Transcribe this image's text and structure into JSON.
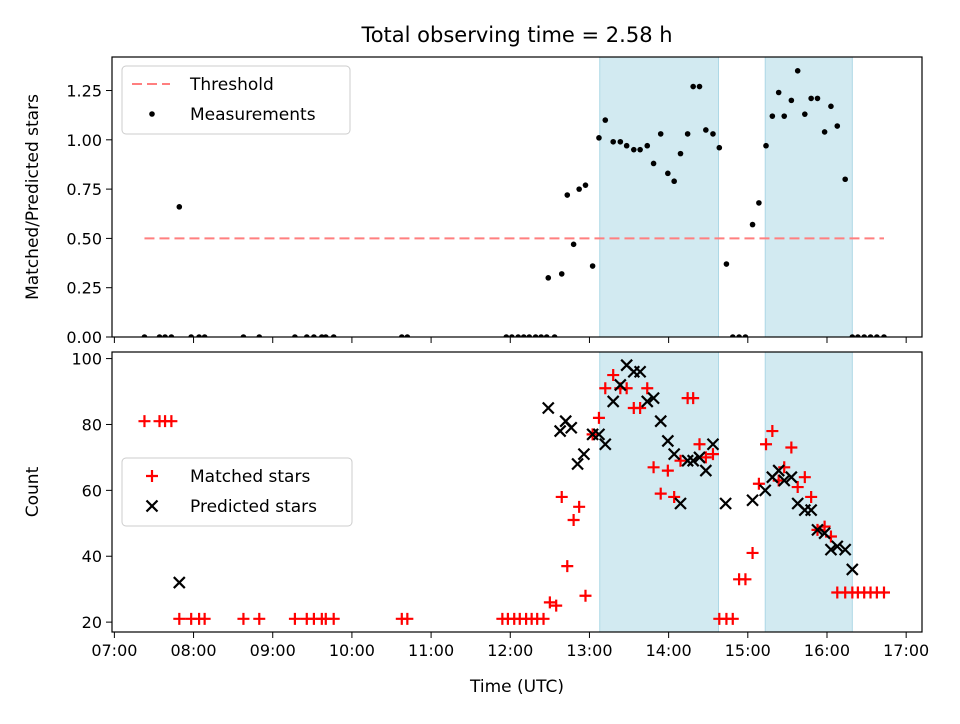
{
  "title": "Total observing time = 2.58 h",
  "xlabel": "Time (UTC)",
  "x_ticks": [
    "07:00",
    "08:00",
    "09:00",
    "10:00",
    "11:00",
    "12:00",
    "13:00",
    "14:00",
    "15:00",
    "16:00",
    "17:00"
  ],
  "x_tick_hours": [
    7,
    8,
    9,
    10,
    11,
    12,
    13,
    14,
    15,
    16,
    17
  ],
  "x_range": [
    6.97,
    17.2
  ],
  "shaded_intervals": [
    [
      13.13,
      14.63
    ],
    [
      15.22,
      16.32
    ]
  ],
  "colors": {
    "shade": "#add8e6",
    "threshold": "#ff7f7f",
    "matched": "#ff0000",
    "predicted": "#000000",
    "measurement": "#000000"
  },
  "chart_data": [
    {
      "type": "scatter",
      "ylabel": "Matched/Predicted stars",
      "ylim": [
        0,
        1.42
      ],
      "y_ticks": [
        "0.00",
        "0.25",
        "0.50",
        "0.75",
        "1.00",
        "1.25"
      ],
      "y_tick_values": [
        0,
        0.25,
        0.5,
        0.75,
        1.0,
        1.25
      ],
      "legend": {
        "placement": "upper-left",
        "entries": [
          "Threshold",
          "Measurements"
        ]
      },
      "threshold": {
        "name": "Threshold",
        "value": 0.5,
        "x_range": [
          7.38,
          16.72
        ]
      },
      "series": [
        {
          "name": "Measurements",
          "x": [
            7.38,
            7.57,
            7.64,
            7.72,
            7.82,
            7.97,
            8.07,
            8.14,
            8.63,
            8.83,
            9.28,
            9.43,
            9.52,
            9.62,
            9.67,
            9.77,
            10.63,
            10.7,
            11.95,
            12.02,
            12.1,
            12.17,
            12.24,
            12.32,
            12.39,
            12.46,
            12.56,
            12.48,
            12.65,
            12.72,
            12.8,
            12.87,
            12.95,
            13.04,
            13.12,
            13.2,
            13.3,
            13.39,
            13.47,
            13.56,
            13.64,
            13.73,
            13.81,
            13.9,
            13.99,
            14.07,
            14.15,
            14.24,
            14.31,
            14.39,
            14.47,
            14.56,
            14.64,
            14.73,
            14.81,
            14.89,
            14.97,
            15.06,
            15.14,
            15.23,
            15.31,
            15.39,
            15.46,
            15.55,
            15.63,
            15.72,
            15.8,
            15.88,
            15.97,
            16.05,
            16.13,
            16.23,
            16.32,
            16.39,
            16.47,
            16.55,
            16.63,
            16.72
          ],
          "y": [
            0,
            0,
            0,
            0,
            0.66,
            0,
            0,
            0,
            0,
            0,
            0,
            0,
            0,
            0,
            0,
            0,
            0,
            0,
            0,
            0,
            0,
            0,
            0,
            0,
            0,
            0,
            0,
            0.3,
            0.32,
            0.72,
            0.47,
            0.75,
            0.77,
            0.36,
            1.01,
            1.1,
            0.99,
            0.99,
            0.97,
            0.95,
            0.95,
            0.97,
            0.88,
            1.03,
            0.83,
            0.79,
            0.93,
            1.03,
            1.27,
            1.27,
            1.05,
            1.03,
            0.96,
            0.37,
            0,
            0,
            0,
            0.57,
            0.68,
            0.97,
            1.12,
            1.24,
            1.12,
            1.2,
            1.35,
            1.13,
            1.21,
            1.21,
            1.04,
            1.17,
            1.07,
            0.8,
            0,
            0,
            0,
            0,
            0,
            0
          ]
        }
      ]
    },
    {
      "type": "scatter",
      "ylabel": "Count",
      "ylim": [
        17,
        102
      ],
      "y_ticks": [
        "20",
        "40",
        "60",
        "80",
        "100"
      ],
      "y_tick_values": [
        20,
        40,
        60,
        80,
        100
      ],
      "legend": {
        "placement": "center-left",
        "entries": [
          "Matched stars",
          "Predicted stars"
        ]
      },
      "series": [
        {
          "name": "Matched stars",
          "marker": "plus",
          "x": [
            7.38,
            7.57,
            7.64,
            7.72,
            7.82,
            7.97,
            8.07,
            8.14,
            8.63,
            8.83,
            9.28,
            9.43,
            9.52,
            9.62,
            9.67,
            9.77,
            10.63,
            10.7,
            11.9,
            11.97,
            12.05,
            12.12,
            12.2,
            12.27,
            12.34,
            12.42,
            12.5,
            12.58,
            12.65,
            12.72,
            12.8,
            12.87,
            12.95,
            13.04,
            13.12,
            13.2,
            13.3,
            13.39,
            13.47,
            13.56,
            13.64,
            13.73,
            13.81,
            13.9,
            13.99,
            14.07,
            14.15,
            14.24,
            14.31,
            14.39,
            14.47,
            14.56,
            14.64,
            14.73,
            14.81,
            14.89,
            14.97,
            15.06,
            15.14,
            15.23,
            15.31,
            15.39,
            15.46,
            15.55,
            15.63,
            15.72,
            15.8,
            15.88,
            15.97,
            16.05,
            16.13,
            16.23,
            16.32,
            16.39,
            16.47,
            16.55,
            16.63,
            16.72
          ],
          "y": [
            81,
            81,
            81,
            81,
            21,
            21,
            21,
            21,
            21,
            21,
            21,
            21,
            21,
            21,
            21,
            21,
            21,
            21,
            21,
            21,
            21,
            21,
            21,
            21,
            21,
            21,
            26,
            25,
            58,
            37,
            51,
            55,
            28,
            77,
            82,
            91,
            95,
            91,
            91,
            85,
            85,
            91,
            67,
            59,
            66,
            58,
            69,
            88,
            88,
            74,
            70,
            71,
            21,
            21,
            21,
            33,
            33,
            41,
            62,
            74,
            78,
            63,
            67,
            73,
            61,
            64,
            58,
            48,
            49,
            46,
            29,
            29,
            29,
            29,
            29,
            29,
            29,
            29
          ],
          "y_adjust_note": ""
        },
        {
          "name": "Predicted stars",
          "marker": "x",
          "x": [
            7.82,
            12.48,
            12.63,
            12.7,
            12.77,
            12.85,
            12.93,
            13.04,
            13.12,
            13.2,
            13.3,
            13.39,
            13.47,
            13.56,
            13.64,
            13.73,
            13.81,
            13.9,
            13.99,
            14.07,
            14.15,
            14.24,
            14.31,
            14.39,
            14.47,
            14.56,
            14.72,
            15.06,
            15.22,
            15.31,
            15.39,
            15.46,
            15.55,
            15.63,
            15.72,
            15.8,
            15.88,
            15.97,
            16.05,
            16.13,
            16.23,
            16.32
          ],
          "y": [
            32,
            85,
            78,
            81,
            79,
            68,
            71,
            77,
            77,
            74,
            87,
            92,
            98,
            96,
            96,
            87,
            88,
            81,
            75,
            71,
            56,
            69,
            69,
            70,
            66,
            74,
            56,
            57,
            60,
            64,
            66,
            63,
            64,
            56,
            54,
            54,
            48,
            47,
            42,
            43,
            42,
            36
          ]
        }
      ]
    }
  ]
}
